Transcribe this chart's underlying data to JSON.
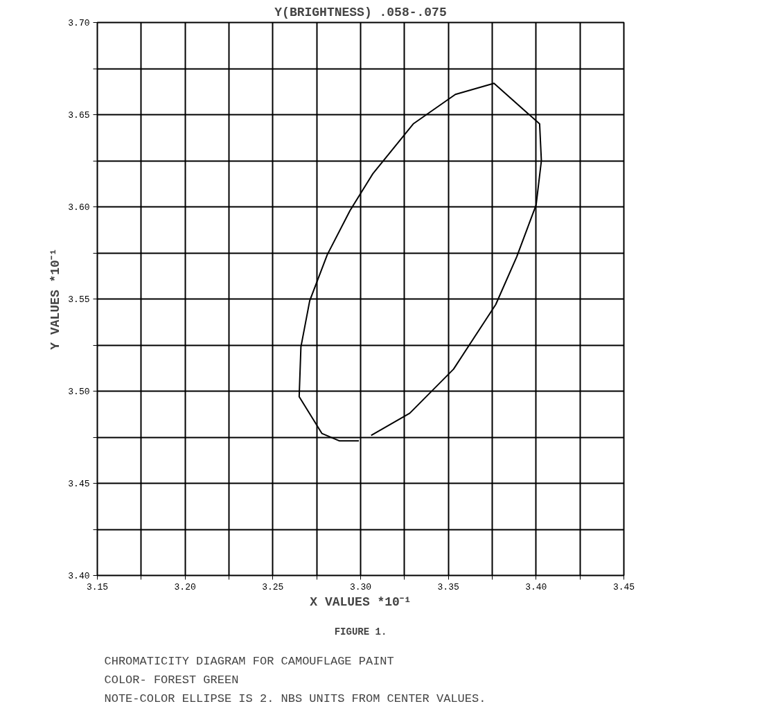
{
  "chart_data": {
    "type": "line",
    "title": "Y(BRIGHTNESS) .058-.075",
    "xlabel": "X VALUES *10⁻¹",
    "ylabel": "Y VALUES *10⁻¹",
    "series": [
      {
        "color": "#000000",
        "x": [
          3.306,
          3.328,
          3.353,
          3.377,
          3.389,
          3.4,
          3.403,
          3.402,
          3.376,
          3.354,
          3.33,
          3.307,
          3.294,
          3.281,
          3.271,
          3.266,
          3.265,
          3.278,
          3.288,
          3.299
        ],
        "values": [
          3.476,
          3.488,
          3.512,
          3.547,
          3.573,
          3.601,
          3.625,
          3.645,
          3.667,
          3.661,
          3.645,
          3.618,
          3.598,
          3.574,
          3.549,
          3.524,
          3.497,
          3.477,
          3.473,
          3.473
        ]
      }
    ],
    "xlim": [
      3.15,
      3.45
    ],
    "ylim": [
      3.4,
      3.7
    ],
    "xticks": [
      {
        "value": 3.15,
        "label": "3.15"
      },
      {
        "value": 3.175,
        "label": null
      },
      {
        "value": 3.2,
        "label": "3.20"
      },
      {
        "value": 3.225,
        "label": null
      },
      {
        "value": 3.25,
        "label": "3.25"
      },
      {
        "value": 3.275,
        "label": null
      },
      {
        "value": 3.3,
        "label": "3.30"
      },
      {
        "value": 3.325,
        "label": null
      },
      {
        "value": 3.35,
        "label": "3.35"
      },
      {
        "value": 3.375,
        "label": null
      },
      {
        "value": 3.4,
        "label": "3.40"
      },
      {
        "value": 3.425,
        "label": null
      },
      {
        "value": 3.45,
        "label": "3.45"
      }
    ],
    "yticks": [
      {
        "value": 3.4,
        "label": "3.40"
      },
      {
        "value": 3.425,
        "label": null
      },
      {
        "value": 3.45,
        "label": "3.45"
      },
      {
        "value": 3.475,
        "label": null
      },
      {
        "value": 3.5,
        "label": "3.50"
      },
      {
        "value": 3.525,
        "label": null
      },
      {
        "value": 3.55,
        "label": "3.55"
      },
      {
        "value": 3.575,
        "label": null
      },
      {
        "value": 3.6,
        "label": "3.60"
      },
      {
        "value": 3.625,
        "label": null
      },
      {
        "value": 3.65,
        "label": "3.65"
      },
      {
        "value": 3.675,
        "label": null
      },
      {
        "value": 3.7,
        "label": "3.70"
      }
    ],
    "grid": true,
    "annotations": [
      "FIGURE 1.",
      "CHROMATICITY DIAGRAM FOR CAMOUFLAGE PAINT",
      "COLOR- FOREST GREEN",
      "NOTE-COLOR ELLIPSE IS 2. NBS UNITS FROM CENTER VALUES."
    ]
  }
}
